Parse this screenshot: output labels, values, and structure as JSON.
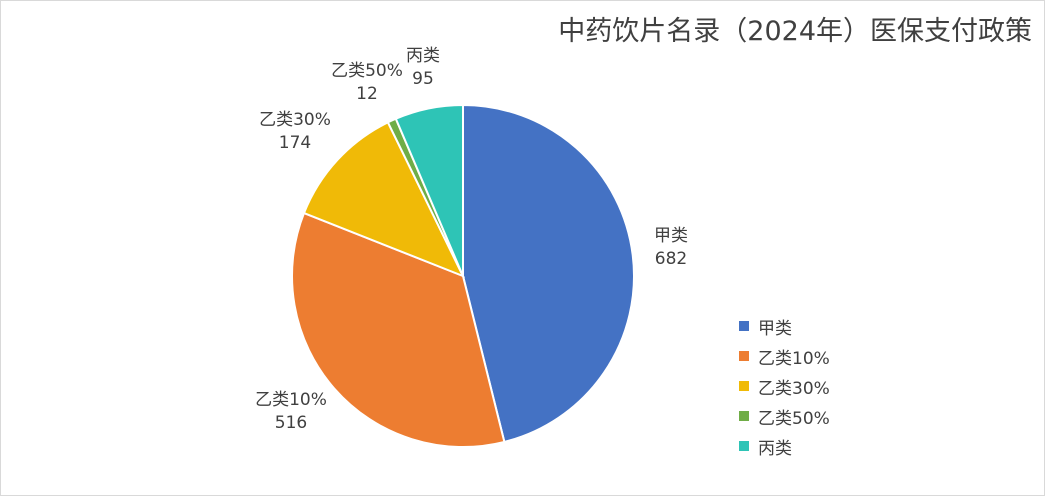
{
  "chart_data": {
    "type": "pie",
    "title": "中药饮片名录（2024年）医保支付政策",
    "categories": [
      "甲类",
      "乙类10%",
      "乙类30%",
      "乙类50%",
      "丙类"
    ],
    "values": [
      682,
      516,
      174,
      12,
      95
    ],
    "colors": [
      "#4472C4",
      "#ED7D31",
      "#F0BA07",
      "#70AD47",
      "#2EC4B6"
    ],
    "data_labels": true,
    "legend": "right",
    "start_angle": "12 o'clock",
    "direction": "clockwise"
  }
}
